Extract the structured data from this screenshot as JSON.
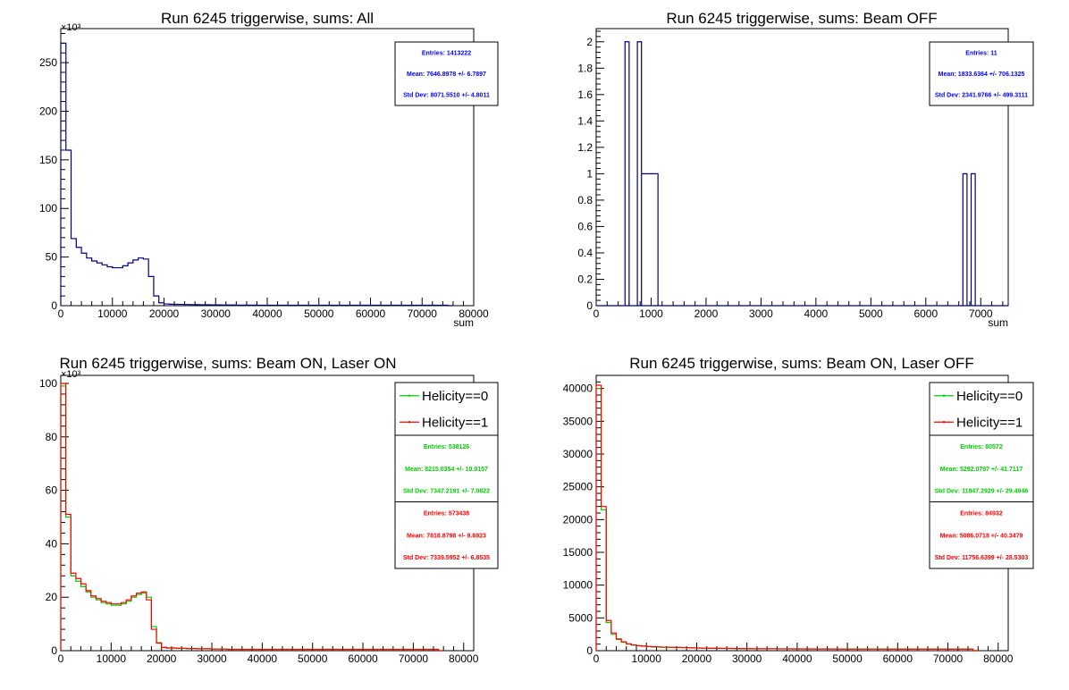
{
  "colors": {
    "navy": "#00007f",
    "green": "#00cc00",
    "red": "#ff0000",
    "stat_blue": "#0000ff"
  },
  "chart_data": [
    {
      "type": "histogram",
      "title": "Run 6245 triggerwise, sums: All",
      "xlabel": "sum",
      "y_multiplier": "×10³",
      "xlim": [
        0,
        80000
      ],
      "ylim": [
        0,
        285
      ],
      "xticks": [
        0,
        10000,
        20000,
        30000,
        40000,
        50000,
        60000,
        70000,
        80000
      ],
      "yticks": [
        0,
        50,
        100,
        150,
        200,
        250
      ],
      "bin_width": 1000,
      "stats": [
        {
          "color": "stat_blue",
          "lines": [
            "Entries: 1413222",
            "Mean: 7646.8978 +/- 6.7897",
            "Std Dev: 8071.5510 +/- 4.8011"
          ]
        }
      ],
      "series": [
        {
          "color": "navy",
          "values": [
            270,
            160,
            69,
            60,
            54,
            49,
            46,
            44,
            42,
            40,
            39,
            39,
            41,
            44,
            47,
            49,
            48,
            30,
            10,
            3,
            1.8,
            1.5,
            1.4,
            1.3,
            1.2,
            1.1,
            1.0,
            0.9,
            0.9,
            0.8,
            0.8,
            0.7,
            0.7,
            0.7,
            0.6,
            0.6,
            0.6,
            0.6,
            0.5,
            0.5,
            0.5,
            0.5,
            0.5,
            0.5,
            0.5,
            0.5,
            0.5,
            0.5,
            0.5,
            0.5,
            0.5,
            0.5,
            0.5,
            0.5,
            0.5,
            0.5,
            0.5,
            0.5,
            0.5,
            0.5,
            0.5,
            0.5,
            0.5,
            0.5,
            0.5,
            0.5,
            0.5,
            0.5,
            0.5,
            0.5,
            0.5,
            0.5,
            0.5,
            0.5,
            0.5,
            0
          ]
        }
      ]
    },
    {
      "type": "histogram",
      "title": "Run 6245 triggerwise, sums: Beam OFF",
      "xlabel": "sum",
      "y_multiplier": "",
      "xlim": [
        0,
        7500
      ],
      "ylim": [
        0,
        2.1
      ],
      "xticks": [
        0,
        1000,
        2000,
        3000,
        4000,
        5000,
        6000,
        7000
      ],
      "yticks": [
        0,
        0.2,
        0.4,
        0.6,
        0.8,
        1,
        1.2,
        1.4,
        1.6,
        1.8,
        2
      ],
      "bin_width": 75,
      "bars": [
        {
          "x0": 525,
          "x1": 600,
          "value": 2
        },
        {
          "x0": 750,
          "x1": 825,
          "value": 2
        },
        {
          "x0": 825,
          "x1": 1125,
          "value": 1
        },
        {
          "x0": 6675,
          "x1": 6750,
          "value": 1
        },
        {
          "x0": 6825,
          "x1": 6900,
          "value": 1
        }
      ],
      "stats": [
        {
          "color": "stat_blue",
          "lines": [
            "Entries: 11",
            "Mean: 1833.6364 +/- 706.1325",
            "Std Dev: 2341.9766 +/- 499.3111"
          ]
        }
      ],
      "series": [
        {
          "color": "navy"
        }
      ]
    },
    {
      "type": "histogram",
      "title": "Run 6245 triggerwise, sums: Beam ON, Laser ON",
      "xlabel": "",
      "y_multiplier": "×10³",
      "xlim": [
        0,
        82000
      ],
      "ylim": [
        0,
        103
      ],
      "xticks": [
        0,
        10000,
        20000,
        30000,
        40000,
        50000,
        60000,
        70000,
        80000
      ],
      "yticks": [
        0,
        20,
        40,
        60,
        80,
        100
      ],
      "bin_width": 1000,
      "legend": [
        {
          "label": "Helicity==0",
          "color": "green"
        },
        {
          "label": "Helicity==1",
          "color": "red"
        }
      ],
      "stats": [
        {
          "color": "green",
          "lines": [
            "Entries: 538126",
            "Mean: 8215.0354 +/- 10.0157",
            "Std Dev: 7347.2191 +/- 7.0822"
          ]
        },
        {
          "color": "red",
          "lines": [
            "Entries: 573438",
            "Mean: 7818.8798 +/- 9.6923",
            "Std Dev: 7339.5952 +/- 6.8535"
          ]
        }
      ],
      "series": [
        {
          "color": "green",
          "values": [
            99,
            50,
            28,
            26,
            24,
            22,
            20,
            19,
            18,
            17.5,
            17,
            17,
            17.5,
            18.5,
            20,
            21,
            21.5,
            20,
            9,
            3,
            1.2,
            1.0,
            1.0,
            0.9,
            0.9,
            0.8,
            0.8,
            0.7,
            0.7,
            0.7,
            0.6,
            0.6,
            0.6,
            0.5,
            0.5,
            0.5,
            0.5,
            0.5,
            0.5,
            0.5,
            0.5,
            0.5,
            0.5,
            0.5,
            0.5,
            0.5,
            0.5,
            0.5,
            0.5,
            0.5,
            0.5,
            0.5,
            0.5,
            0.5,
            0.5,
            0.5,
            0.5,
            0.5,
            0.5,
            0.5,
            0.5,
            0.5,
            0.5,
            0.5,
            0.5,
            0.5,
            0.5,
            0.5,
            0.5,
            0.5,
            0.5,
            0.5,
            0.5,
            0.5,
            0.5,
            0
          ]
        },
        {
          "color": "red",
          "values": [
            100,
            51,
            29,
            27,
            25,
            22.5,
            20.5,
            19.5,
            18.5,
            18,
            17.5,
            17.5,
            18,
            19,
            20.5,
            21.5,
            22,
            19,
            8,
            2.8,
            1.2,
            1.0,
            1.0,
            0.9,
            0.9,
            0.8,
            0.8,
            0.7,
            0.7,
            0.7,
            0.6,
            0.6,
            0.6,
            0.5,
            0.5,
            0.5,
            0.5,
            0.5,
            0.5,
            0.5,
            0.5,
            0.5,
            0.5,
            0.5,
            0.5,
            0.5,
            0.5,
            0.5,
            0.5,
            0.5,
            0.5,
            0.5,
            0.5,
            0.5,
            0.5,
            0.5,
            0.5,
            0.5,
            0.5,
            0.5,
            0.5,
            0.5,
            0.5,
            0.5,
            0.5,
            0.5,
            0.5,
            0.5,
            0.5,
            0.5,
            0.5,
            0.5,
            0.5,
            0.5,
            0.5,
            0
          ]
        }
      ]
    },
    {
      "type": "histogram",
      "title": "Run 6245 triggerwise, sums: Beam ON, Laser OFF",
      "xlabel": "",
      "y_multiplier": "",
      "xlim": [
        0,
        82000
      ],
      "ylim": [
        0,
        42000
      ],
      "xticks": [
        0,
        10000,
        20000,
        30000,
        40000,
        50000,
        60000,
        70000,
        80000
      ],
      "yticks": [
        0,
        5000,
        10000,
        15000,
        20000,
        25000,
        30000,
        35000,
        40000
      ],
      "bin_width": 1000,
      "legend": [
        {
          "label": "Helicity==0",
          "color": "green"
        },
        {
          "label": "Helicity==1",
          "color": "red"
        }
      ],
      "stats": [
        {
          "color": "green",
          "lines": [
            "Entries: 80572",
            "Mean: 5292.0797 +/- 41.7117",
            "Std Dev: 11847.2929 +/- 29.4946"
          ]
        },
        {
          "color": "red",
          "lines": [
            "Entries: 84932",
            "Mean: 5086.0718 +/- 40.3479",
            "Std Dev: 11756.6399 +/- 28.5303"
          ]
        }
      ],
      "series": [
        {
          "color": "green",
          "values": [
            40000,
            21500,
            4300,
            2500,
            1700,
            1300,
            1000,
            850,
            750,
            680,
            620,
            580,
            550,
            530,
            510,
            500,
            490,
            470,
            440,
            420,
            400,
            380,
            370,
            360,
            350,
            340,
            330,
            320,
            310,
            300,
            300,
            290,
            290,
            280,
            280,
            280,
            270,
            270,
            270,
            260,
            260,
            260,
            260,
            250,
            250,
            250,
            250,
            250,
            250,
            240,
            240,
            240,
            240,
            240,
            240,
            240,
            240,
            240,
            230,
            230,
            230,
            230,
            230,
            230,
            230,
            230,
            230,
            230,
            230,
            230,
            230,
            230,
            230,
            230,
            230,
            0
          ]
        },
        {
          "color": "red",
          "values": [
            40500,
            22000,
            4600,
            2700,
            1800,
            1350,
            1050,
            880,
            770,
            700,
            640,
            600,
            570,
            540,
            520,
            510,
            500,
            480,
            450,
            430,
            410,
            390,
            380,
            370,
            360,
            350,
            340,
            330,
            320,
            310,
            310,
            300,
            300,
            290,
            290,
            290,
            280,
            280,
            280,
            270,
            270,
            270,
            270,
            260,
            260,
            260,
            260,
            260,
            260,
            250,
            250,
            250,
            250,
            250,
            250,
            250,
            250,
            250,
            240,
            240,
            240,
            240,
            240,
            240,
            240,
            240,
            240,
            240,
            240,
            240,
            240,
            240,
            240,
            240,
            240,
            0
          ]
        }
      ]
    }
  ]
}
